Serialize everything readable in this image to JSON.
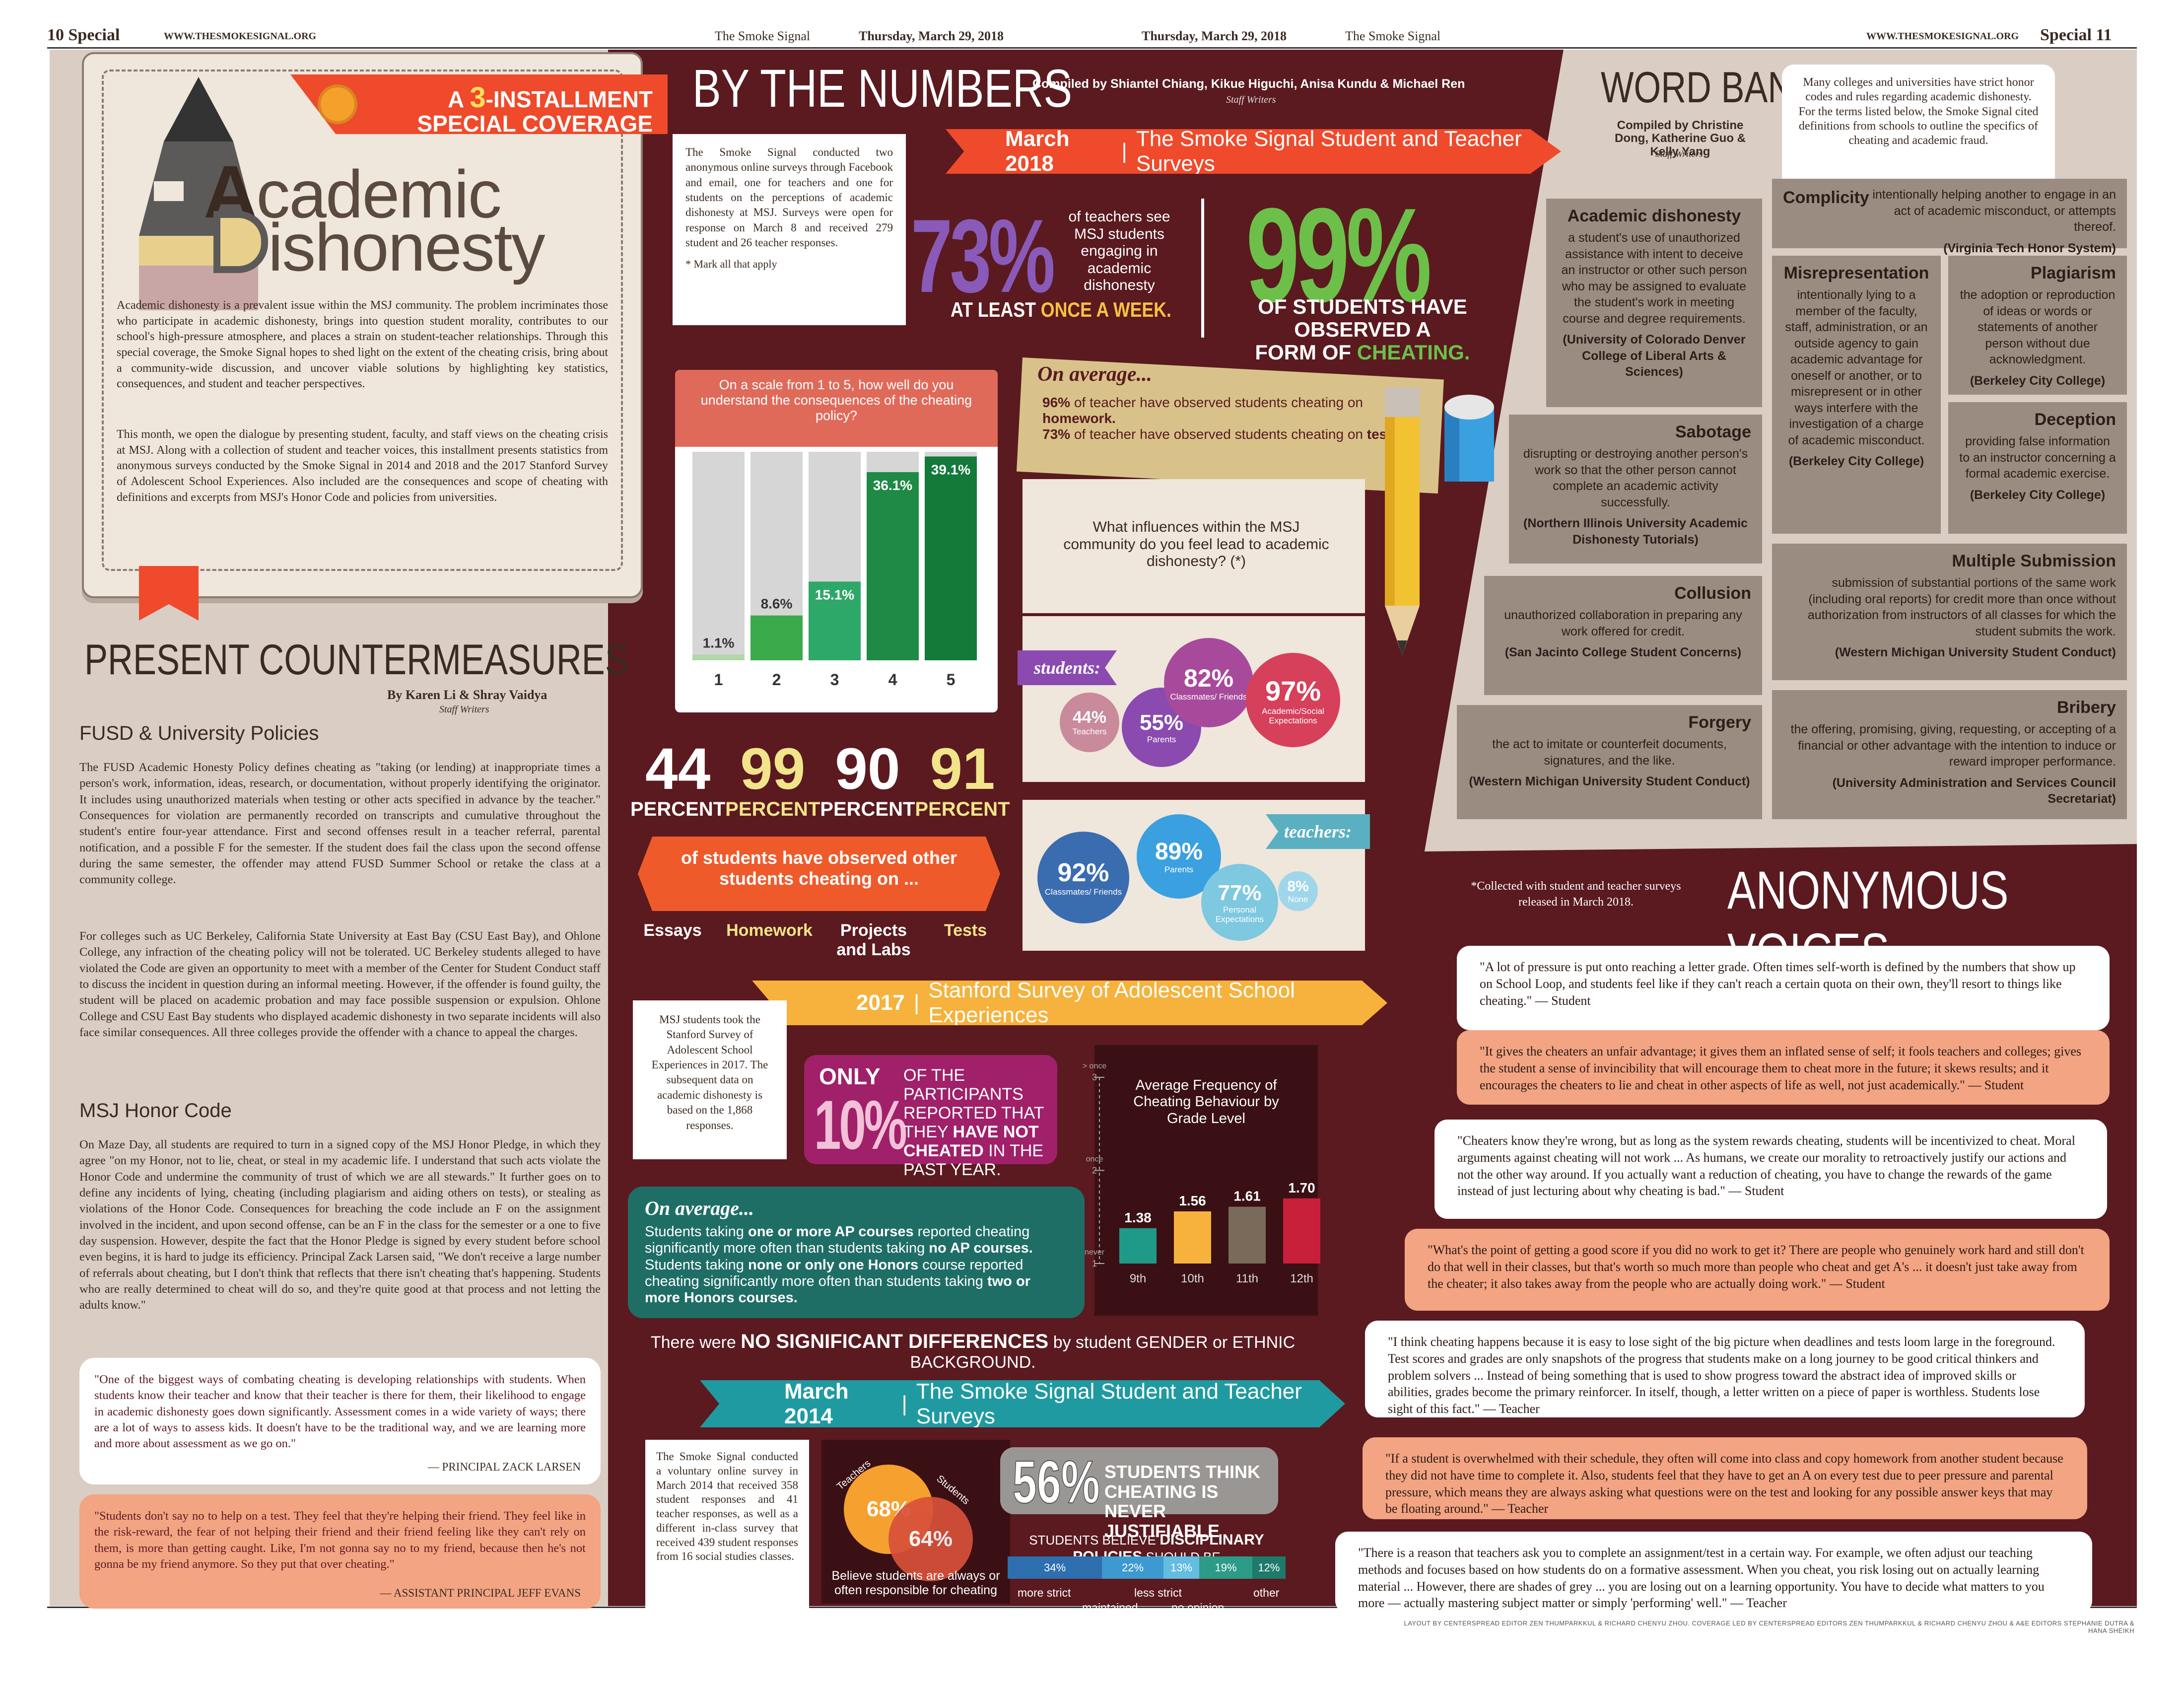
{
  "header": {
    "left_page": "10",
    "left_section": "Special",
    "url": "WWW.THESMOKESIGNAL.ORG",
    "paper": "The Smoke Signal",
    "date": "Thursday, March 29, 2018",
    "right_page": "11",
    "right_section": "Special"
  },
  "intro": {
    "installment_a": "A",
    "installment_num": "3",
    "installment_rest": "-INSTALLMENT",
    "installment_line2": "SPECIAL COVERAGE",
    "title_a": "cademic",
    "title_d": "ishonesty",
    "p1": "Academic dishonesty is a prevalent issue within the MSJ community. The problem incriminates those who participate in academic dishonesty, brings into question student morality, contributes to our school's high-pressure atmosphere, and places a strain on student-teacher relationships. Through this special coverage, the Smoke Signal hopes to shed light on the extent of the cheating crisis, bring about a community-wide discussion, and uncover viable solutions by highlighting key statistics, consequences, and student and teacher perspectives.",
    "p2": "This month, we open the dialogue by presenting student, faculty, and staff views on the cheating crisis at MSJ. Along with a collection of student and teacher voices, this installment presents statistics from anonymous surveys conducted by the Smoke Signal in 2014 and 2018 and the 2017 Stanford Survey of Adolescent School Experiences. Also included are the consequences and scope of cheating with definitions and excerpts from MSJ's Honor Code and policies from universities."
  },
  "countermeasures": {
    "title": "PRESENT COUNTERMEASURES",
    "byline": "By Karen Li & Shray Vaidya",
    "staff": "Staff Writers",
    "h1": "FUSD & University Policies",
    "p1": "The FUSD Academic Honesty Policy defines cheating as \"taking (or lending) at inappropriate times a person's work, information, ideas, research, or documentation, without properly identifying the originator. It includes using unauthorized materials when testing or other acts specified in advance by the teacher.\" Consequences for violation are permanently recorded on transcripts and cumulative throughout the student's entire four-year attendance. First and second offenses result in a teacher referral, parental notification, and a possible F for the semester. If the student does fail the class upon the second offense during the same semester, the offender may attend FUSD Summer School or retake the class at a community college.",
    "p2": "For colleges such as UC Berkeley, California State University at East Bay (CSU East Bay), and Ohlone College, any infraction of the cheating policy will not be tolerated. UC Berkeley students alleged to have violated the Code are given an opportunity to meet with a member of the Center for Student Conduct staff to discuss the incident in question during an informal meeting. However, if the offender is found guilty, the student will be placed on academic probation and may face possible suspension or expulsion. Ohlone College and CSU East Bay students who displayed academic dishonesty in two separate incidents will also face similar consequences. All three colleges provide the offender with a chance to appeal the charges.",
    "h2": "MSJ Honor Code",
    "p3": "On Maze Day, all students are required to turn in a signed copy of the MSJ Honor Pledge, in which they agree \"on my Honor, not to lie, cheat, or steal in my academic life. I understand that such acts violate the Honor Code and undermine the community of trust of which we are all stewards.\" It further goes on to define any incidents of lying, cheating (including plagiarism and aiding others on tests), or stealing as violations of the Honor Code. Consequences for breaching the code include an F on the assignment involved in the incident, and upon second offense, can be an F in the class for the semester or a one to five day suspension. However, despite the fact that the Honor Pledge is signed by every student before school even begins, it is hard to judge its efficiency. Principal Zack Larsen said, \"We don't receive a large number of referrals about cheating, but I don't think that reflects that there isn't cheating that's happening. Students who are really determined to cheat will do so, and they're quite good at that process and not letting the adults know.\"",
    "q1": "\"One of the biggest ways of combating cheating is developing relationships with students. When students know their teacher and know that their teacher is there for them, their likelihood to engage in academic dishonesty goes down significantly. Assessment comes in a wide variety of ways; there are a lot of ways to assess kids. It doesn't have to be the traditional way, and we are learning more and more about assessment as we go on.\"",
    "q1_by": "— PRINCIPAL ZACK LARSEN",
    "q2": "\"Students don't say no to help on a test. They feel that they're helping their friend. They feel like in the risk-reward, the fear of not helping their friend and their friend feeling like they can't rely on them, is more than getting caught. Like, I'm not gonna say no to my friend, because then he's not gonna be my friend anymore. So they put that over cheating.\"",
    "q2_by": "— ASSISTANT PRINCIPAL JEFF EVANS"
  },
  "numbers": {
    "title": "BY THE NUMBERS",
    "compiled": "Compiled by Shiantel Chiang, Kikue Higuchi, Anisa Kundu & Michael Ren",
    "staff": "Staff Writers",
    "survey_note": "The Smoke Signal conducted two anonymous online surveys through Facebook and email, one for teachers and one for students on the perceptions of academic dishonesty at MSJ. Surveys were open for response on March 8 and received 279 student and 26 teacher responses.",
    "mark_note": "* Mark all that apply",
    "banner2018_year": "March 2018",
    "banner2018_text": "The Smoke Signal Student and Teacher Surveys",
    "pct73": "73%",
    "pct73_desc": "of teachers see MSJ students engaging in academic dishonesty",
    "pct73_sub_a": "AT LEAST ",
    "pct73_sub_b": "ONCE A WEEK.",
    "pct99": "99%",
    "pct99_sub_a": "OF STUDENTS HAVE OBSERVED A",
    "pct99_sub_b": "FORM OF ",
    "pct99_sub_c": "CHEATING.",
    "average_title": "On average...",
    "avg1a": "96%",
    "avg1b": " of teacher have observed students cheating on ",
    "avg1c": "homework.",
    "avg2a": "73%",
    "avg2b": " of teacher have observed students cheating on ",
    "avg2c": "tests.",
    "influence_q": "What influences within the MSJ community do you feel lead to academic dishonesty? (*)",
    "students_tag": "students:",
    "teachers_tag": "teachers:",
    "students_circles": [
      {
        "v": "44%",
        "l": "Teachers"
      },
      {
        "v": "55%",
        "l": "Parents"
      },
      {
        "v": "82%",
        "l": "Classmates/ Friends"
      },
      {
        "v": "97%",
        "l": "Academic/Social Expectations"
      }
    ],
    "teachers_circles": [
      {
        "v": "92%",
        "l": "Classmates/ Friends"
      },
      {
        "v": "89%",
        "l": "Parents"
      },
      {
        "v": "77%",
        "l": "Personal Expectations"
      },
      {
        "v": "8%",
        "l": "None"
      }
    ],
    "stats4": [
      {
        "v": "44",
        "l": "PERCENT",
        "t": "Essays"
      },
      {
        "v": "99",
        "l": "PERCENT",
        "t": "Homework"
      },
      {
        "v": "90",
        "l": "PERCENT",
        "t": "Projects and Labs"
      },
      {
        "v": "91",
        "l": "PERCENT",
        "t": "Tests"
      }
    ],
    "stats4_desc": "of students have observed other students cheating on ...",
    "banner2017_year": "2017",
    "banner2017_text": "Stanford Survey of Adolescent School Experiences",
    "stanford_note": "MSJ students took the Stanford Survey of Adolescent School Experiences in 2017. The subsequent data on academic dishonesty is based on the 1,868 responses.",
    "only": "ONLY",
    "pct10": "10%",
    "pct10_a": "OF THE PARTICIPANTS REPORTED THAT THEY ",
    "pct10_b": "HAVE NOT CHEATED",
    "pct10_c": " IN THE PAST YEAR.",
    "avg2_title": "On average...",
    "ap_text_a": "Students taking ",
    "ap_text_b": "one or more AP courses",
    "ap_text_c": " reported cheating significantly more often than students taking ",
    "ap_text_d": "no AP courses.",
    "ap_text_e": " Students taking ",
    "ap_text_f": "none or only one Honors",
    "ap_text_g": " course reported cheating significantly more often than students taking ",
    "ap_text_h": "two or more Honors courses.",
    "no_diff_a": "There were ",
    "no_diff_b": "NO SIGNIFICANT DIFFERENCES",
    "no_diff_c": " by student ",
    "no_diff_d": "GENDER",
    "no_diff_e": " or ",
    "no_diff_f": "ETHNIC BACKGROUND.",
    "banner2014_year": "March 2014",
    "banner2014_text": "The Smoke Signal Student and Teacher Surveys",
    "survey2014": "The Smoke Signal conducted a voluntary online survey in March 2014 that received 358 student responses and 41 teacher responses, as well as a different in-class survey that received 439 student responses from 16 social studies classes.",
    "venn": {
      "teachers_label": "Teachers",
      "students_label": "Students",
      "teachers": "68%",
      "students": "64%",
      "caption": "Believe students are always or often responsible for cheating"
    },
    "pct56": "56%",
    "pct56_text": "STUDENTS THINK CHEATING IS NEVER JUSTIFIABLE",
    "policies_a": "STUDENTS BELIEVE ",
    "policies_b": "DISCIPLINARY POLICIES",
    "policies_c": " SHOULD BE",
    "policy_bar": [
      {
        "v": "34%",
        "l": "more strict",
        "c": "#2e6fb0",
        "f": 0.34
      },
      {
        "v": "22%",
        "l": "maintained",
        "c": "#3c9ad0",
        "f": 0.22
      },
      {
        "v": "13%",
        "l": "less strict",
        "c": "#63bde0",
        "f": 0.13
      },
      {
        "v": "19%",
        "l": "no opinion",
        "c": "#2c9b88",
        "f": 0.19
      },
      {
        "v": "12%",
        "l": "other",
        "c": "#1e7a6a",
        "f": 0.12
      }
    ]
  },
  "chart_data": [
    {
      "type": "bar",
      "title": "On a scale from 1 to 5, how well do you understand the consequences of the cheating policy?",
      "categories": [
        "1",
        "2",
        "3",
        "4",
        "5"
      ],
      "values": [
        1.1,
        8.6,
        15.1,
        36.1,
        39.1
      ],
      "ylim": [
        0,
        40
      ],
      "labels": [
        "1.1%",
        "8.6%",
        "15.1%",
        "36.1%",
        "39.1%"
      ]
    },
    {
      "type": "bar",
      "title": "Average Frequency of Cheating Behaviour by Grade Level",
      "categories": [
        "9th",
        "10th",
        "11th",
        "12th"
      ],
      "values": [
        1.38,
        1.56,
        1.61,
        1.7
      ],
      "labels": [
        "1.38",
        "1.56",
        "1.61",
        "1.70"
      ],
      "ylim": [
        1,
        3
      ],
      "yticks": [
        "never",
        "once",
        "> once"
      ],
      "ytick_nums": [
        "1",
        "2",
        "3"
      ]
    }
  ],
  "word_bank": {
    "title": "WORD BANK",
    "compiled": "Compiled by Christine Dong, Katherine Guo & Kelly Yang",
    "staff": "Staff Writers",
    "intro": "Many colleges and universities have strict honor codes and rules regarding academic dishonesty. For the terms listed below, the Smoke Signal cited definitions from schools to outline the specifics of cheating and academic fraud.",
    "terms": [
      {
        "term": "Academic dishonesty",
        "def": "a student's use of unauthorized assistance with intent to deceive an instructor or other such person who may be assigned to evaluate the student's work in meeting course and degree requirements.",
        "src": "(University of Colorado Denver College of Liberal Arts & Sciences)"
      },
      {
        "term": "Complicity",
        "def": "intentionally helping another to engage in an act of academic misconduct, or attempts thereof.",
        "src": "(Virginia Tech Honor System)"
      },
      {
        "term": "Misrepresentation",
        "def": "intentionally lying to a member of the faculty, staff, administration, or an outside agency to gain academic advantage for oneself or another, or to misrepresent or in other ways interfere with the investigation of a charge of academic misconduct.",
        "src": "(Berkeley City College)"
      },
      {
        "term": "Plagiarism",
        "def": "the adoption or reproduction of ideas or words or statements of another person without due acknowledgment.",
        "src": "(Berkeley City College)"
      },
      {
        "term": "Sabotage",
        "def": "disrupting or destroying another person's work so that the other person cannot complete an academic activity successfully.",
        "src": "(Northern Illinois University Academic Dishonesty Tutorials)"
      },
      {
        "term": "Deception",
        "def": "providing false information to an instructor concerning a formal academic exercise.",
        "src": "(Berkeley City College)"
      },
      {
        "term": "Collusion",
        "def": "unauthorized collaboration in preparing any work offered for credit.",
        "src": "(San Jacinto College Student Concerns)"
      },
      {
        "term": "Multiple Submission",
        "def": "submission of substantial portions of the same work (including oral reports) for credit more than once without authorization from instructors of all classes for which the student submits the work.",
        "src": "(Western Michigan University Student Conduct)"
      },
      {
        "term": "Forgery",
        "def": "the act to imitate or counterfeit documents, signatures, and the like.",
        "src": "(Western Michigan University Student Conduct)"
      },
      {
        "term": "Bribery",
        "def": "the offering, promising, giving, requesting, or accepting of a financial or other advantage with the intention to induce or reward improper performance.",
        "src": "(University Administration and Services Council Secretariat)"
      }
    ]
  },
  "voices": {
    "title": "ANONYMOUS VOICES",
    "note": "*Collected with student and teacher surveys released in March 2018.",
    "quotes": [
      "\"A lot of pressure is put onto reaching a letter grade. Often times self-worth is defined by the numbers that show up on School Loop, and students feel like if they can't reach a certain quota on their own, they'll resort to things like cheating.\" — Student",
      "\"It gives the cheaters an unfair advantage; it gives them an inflated sense of self; it fools teachers and colleges; gives the student a sense of invincibility that will encourage them to cheat more in the future; it skews results; and it encourages the cheaters to lie and cheat in other aspects of life as well, not just academically.\" — Student",
      "\"Cheaters know they're wrong, but as long as the system rewards cheating, students will be incentivized to cheat. Moral arguments against cheating will not work ... As humans, we create our morality to retroactively justify our actions and not the other way around. If you actually want a reduction of cheating, you have to change the rewards of the game instead of just lecturing about why cheating is bad.\" — Student",
      "\"What's the point of getting a good score if you did no work to get it? There are people who genuinely work hard and still don't do that well in their classes, but that's worth so much more than people who cheat and get A's ... it doesn't just take away from the cheater; it also takes away from the people who are actually doing work.\" — Student",
      "\"I think cheating happens because it is easy to lose sight of the big picture when deadlines and tests loom large in the foreground. Test scores and grades are only snapshots of the progress that students make on a long journey to be good critical thinkers and problem solvers ... Instead of being something that is used to show progress toward the abstract idea of improved skills or abilities, grades become the primary reinforcer. In itself, though, a letter written on a piece of paper is worthless. Students lose sight of this fact.\" — Teacher",
      "\"If a student is overwhelmed with their schedule, they often will come into class and copy homework from another student because they did not have time to complete it. Also, students feel that they have to get an A on every test due to peer pressure and parental pressure, which means they are always asking what questions were on the test and looking for any possible answer keys that may be floating around.\" — Teacher",
      "\"There is a reason that teachers ask you to complete an assignment/test in a certain way. For example, we often adjust our teaching methods and focuses based on how students do on a formative assessment. When you cheat, you risk losing out on actually learning material ... However, there are shades of grey ... you are losing out on a learning opportunity. You have to decide what matters to you more — actually mastering subject matter or simply 'performing' well.\" — Teacher"
    ]
  },
  "footer": "LAYOUT BY CENTERSPREAD EDITOR ZEN THUMPARKKUL & RICHARD CHENYU ZHOU. COVERAGE LED BY CENTERSPREAD EDITORS ZEN THUMPARKKUL & RICHARD CHENYU ZHOU & A&E EDITORS STEPHANIE DUTRA & HANA SHEIKH",
  "colors": {
    "maroon": "#5a1a1f",
    "tan": "#dacdc3",
    "orange": "#ef5a2b",
    "green": "#2e8b4a",
    "purple": "#7b3fa0",
    "teal": "#1f7a72",
    "magenta": "#a0206a"
  }
}
